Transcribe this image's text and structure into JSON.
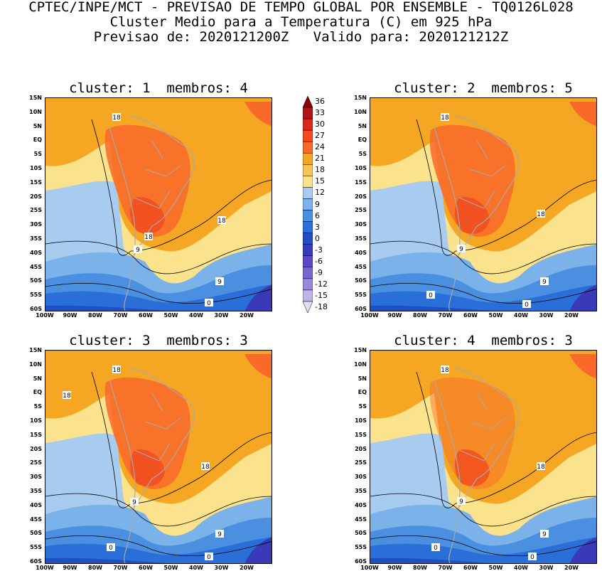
{
  "title": {
    "line1": "CPTEC/INPE/MCT - PREVISAO DE TEMPO GLOBAL POR ENSEMBLE - TQ0126L028",
    "line2": "Cluster Medio para a Temperatura (C) em 925 hPa",
    "line3": "Previsao de: 2020121200Z   Valido para: 2020121212Z"
  },
  "panels": [
    {
      "title": "cluster: 1  membros: 4",
      "labels": [
        "18",
        "18",
        "18",
        "9",
        "9",
        "0"
      ]
    },
    {
      "title": "cluster: 2  membros: 5",
      "labels": [
        "18",
        "18",
        "9",
        "9",
        "0",
        "0"
      ]
    },
    {
      "title": "cluster: 3  membros: 3",
      "labels": [
        "18",
        "18",
        "18",
        "9",
        "9",
        "0",
        "0"
      ]
    },
    {
      "title": "cluster: 4  membros: 3",
      "labels": [
        "18",
        "18",
        "9",
        "9",
        "0",
        "0"
      ]
    }
  ],
  "lat_ticks": [
    "15N",
    "10N",
    "5N",
    "EQ",
    "5S",
    "10S",
    "15S",
    "20S",
    "25S",
    "30S",
    "35S",
    "40S",
    "45S",
    "50S",
    "55S",
    "60S"
  ],
  "lon_ticks": [
    "100W",
    "90W",
    "80W",
    "70W",
    "60W",
    "50W",
    "40W",
    "30W",
    "20W"
  ],
  "colorbar": {
    "labels": [
      "36",
      "33",
      "30",
      "27",
      "24",
      "21",
      "18",
      "15",
      "12",
      "9",
      "6",
      "3",
      "0",
      "-3",
      "-6",
      "-9",
      "-12",
      "-15",
      "-18"
    ],
    "colors": [
      "#8b0000",
      "#b3141a",
      "#d9281e",
      "#f04a1e",
      "#f8692a",
      "#f5a623",
      "#f6c45a",
      "#fbe28c",
      "#a8ccf0",
      "#7bb2ea",
      "#4a8fe0",
      "#2a6fd8",
      "#1f4fc0",
      "#3a3ab8",
      "#5a4ac4",
      "#7a66cf",
      "#9a88da",
      "#c0b2e8",
      "#e2dcf4"
    ]
  }
}
